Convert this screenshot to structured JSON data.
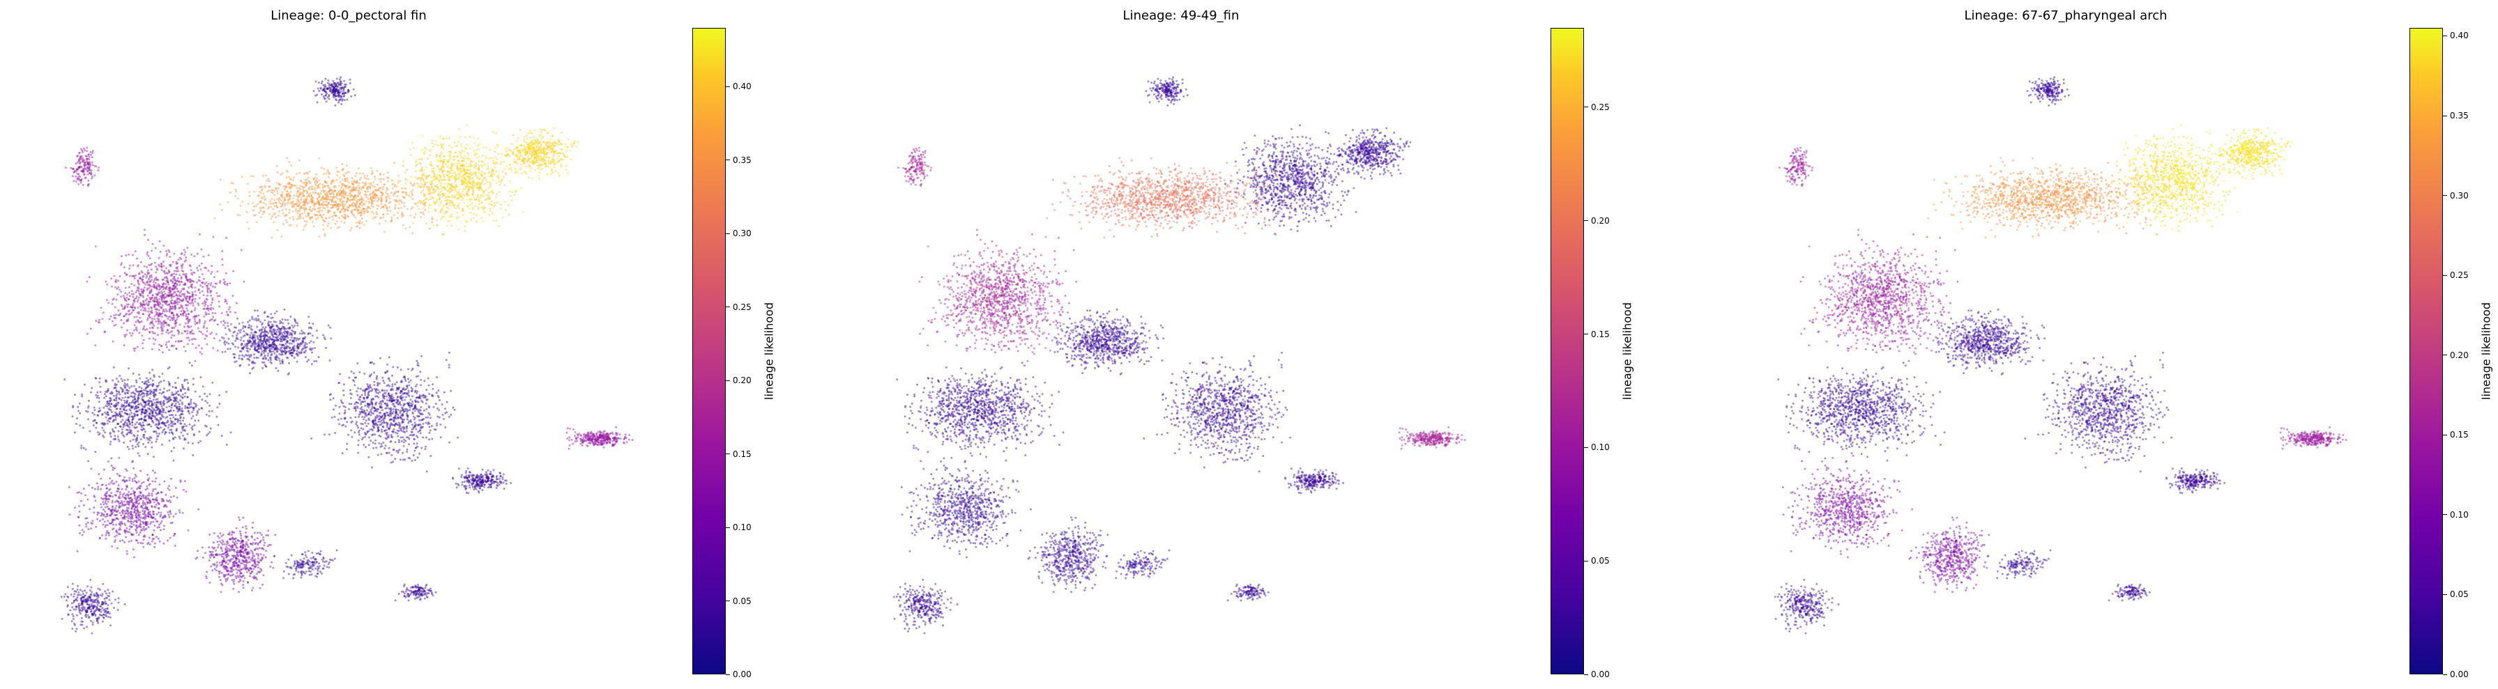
{
  "chart_data": [
    {
      "type": "scatter",
      "title": "Lineage: 0-0_pectoral fin",
      "colorbar_label": "lineage likelihood",
      "colormap": "plasma",
      "color_range": [
        0.0,
        0.44
      ],
      "colorbar_ticks": [
        "0.00",
        "0.05",
        "0.10",
        "0.15",
        "0.20",
        "0.25",
        "0.30",
        "0.35",
        "0.40"
      ],
      "axes_visible": false,
      "highlight_region": "upper-right branches",
      "region_values": {
        "upper_right": 0.4,
        "upper_mid": 0.33,
        "left_body": 0.13,
        "center": 0.03,
        "lower": 0.1
      }
    },
    {
      "type": "scatter",
      "title": "Lineage: 49-49_fin",
      "colorbar_label": "lineage likelihood",
      "colormap": "plasma",
      "color_range": [
        0.0,
        0.285
      ],
      "colorbar_ticks": [
        "0.00",
        "0.05",
        "0.10",
        "0.15",
        "0.20",
        "0.25"
      ],
      "axes_visible": false,
      "highlight_region": "right-center branch",
      "region_values": {
        "upper_right": 0.02,
        "upper_mid": 0.18,
        "left_body": 0.1,
        "center": 0.02,
        "lower": 0.02
      }
    },
    {
      "type": "scatter",
      "title": "Lineage: 67-67_pharyngeal arch",
      "colorbar_label": "lineage likelihood",
      "colormap": "plasma",
      "color_range": [
        0.0,
        0.405
      ],
      "colorbar_ticks": [
        "0.00",
        "0.05",
        "0.10",
        "0.15",
        "0.20",
        "0.25",
        "0.30",
        "0.35",
        "0.40"
      ],
      "axes_visible": false,
      "highlight_region": "upper-right branches",
      "region_values": {
        "upper_right": 0.38,
        "upper_mid": 0.3,
        "left_body": 0.13,
        "center": 0.03,
        "lower": 0.1
      }
    }
  ]
}
